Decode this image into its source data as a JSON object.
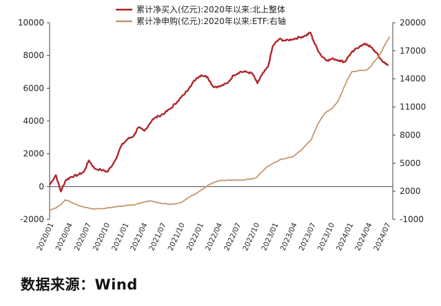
{
  "source_note": "数据来源：Wind",
  "colors": {
    "north": "#b0232a",
    "etf": "#c4956a",
    "axis": "#404040",
    "grid": "none"
  },
  "chart_data": {
    "type": "line",
    "title": "",
    "grid": false,
    "legend_position": "top-center",
    "x_tick_labels": [
      "2020/01",
      "2020/04",
      "2020/07",
      "2020/10",
      "2021/01",
      "2021/04",
      "2021/07",
      "2021/10",
      "2022/01",
      "2022/04",
      "2022/07",
      "2022/10",
      "2023/01",
      "2023/04",
      "2023/07",
      "2023/10",
      "2024/01",
      "2024/04",
      "2024/07"
    ],
    "y_left": {
      "range": [
        -2000,
        10000
      ],
      "ticks": [
        "10000",
        "8000",
        "6000",
        "4000",
        "2000",
        "0",
        "-2000"
      ]
    },
    "y_right": {
      "range": [
        -1000,
        20000
      ],
      "ticks": [
        "20000",
        "17000",
        "14000",
        "11000",
        "8000",
        "5000",
        "2000",
        "-1000"
      ]
    },
    "series": [
      {
        "name": "累计净买入(亿元):2020年以来:北上整体",
        "axis": "left",
        "color": "#b0232a",
        "points": [
          [
            0,
            100
          ],
          [
            1,
            700
          ],
          [
            1.8,
            -300
          ],
          [
            2.6,
            400
          ],
          [
            3.5,
            600
          ],
          [
            4.5,
            700
          ],
          [
            5.5,
            900
          ],
          [
            6.3,
            1600
          ],
          [
            7.2,
            1100
          ],
          [
            8.5,
            1000
          ],
          [
            9.3,
            900
          ],
          [
            10.5,
            1600
          ],
          [
            11.5,
            2500
          ],
          [
            12.5,
            2900
          ],
          [
            13.5,
            3100
          ],
          [
            14.2,
            3600
          ],
          [
            15.2,
            3400
          ],
          [
            16.5,
            4100
          ],
          [
            17.5,
            4300
          ],
          [
            18.5,
            4500
          ],
          [
            19.5,
            4800
          ],
          [
            20.5,
            5200
          ],
          [
            21.5,
            5600
          ],
          [
            22.5,
            6100
          ],
          [
            23.5,
            6600
          ],
          [
            24.3,
            6800
          ],
          [
            25.3,
            6700
          ],
          [
            26.2,
            6100
          ],
          [
            27.2,
            6100
          ],
          [
            28.5,
            6300
          ],
          [
            29.5,
            6800
          ],
          [
            30.5,
            7000
          ],
          [
            31.5,
            7000
          ],
          [
            32.5,
            6900
          ],
          [
            33.3,
            6300
          ],
          [
            34,
            6800
          ],
          [
            35,
            7300
          ],
          [
            35.8,
            8600
          ],
          [
            36.8,
            9000
          ],
          [
            37.8,
            8900
          ],
          [
            39,
            9000
          ],
          [
            40,
            9100
          ],
          [
            41,
            9200
          ],
          [
            41.8,
            9400
          ],
          [
            42.5,
            8700
          ],
          [
            43.5,
            8000
          ],
          [
            44.5,
            7700
          ],
          [
            45.5,
            7800
          ],
          [
            46.5,
            7700
          ],
          [
            47.3,
            7600
          ],
          [
            48,
            8000
          ],
          [
            48.8,
            8300
          ],
          [
            49.8,
            8600
          ],
          [
            50.8,
            8700
          ],
          [
            51.5,
            8500
          ],
          [
            52.3,
            8200
          ],
          [
            53,
            7800
          ],
          [
            53.8,
            7500
          ],
          [
            54.3,
            7400
          ]
        ]
      },
      {
        "name": "累计净申购(亿元):2020年以来:ETF:右轴",
        "axis": "right",
        "color": "#c4956a",
        "points": [
          [
            0,
            0
          ],
          [
            1,
            200
          ],
          [
            2,
            700
          ],
          [
            2.5,
            1100
          ],
          [
            3.5,
            800
          ],
          [
            5,
            400
          ],
          [
            7,
            100
          ],
          [
            9,
            200
          ],
          [
            11,
            400
          ],
          [
            13,
            500
          ],
          [
            14.5,
            700
          ],
          [
            16,
            1000
          ],
          [
            18,
            700
          ],
          [
            19.5,
            600
          ],
          [
            21,
            800
          ],
          [
            22.5,
            1400
          ],
          [
            24,
            2000
          ],
          [
            25.5,
            2700
          ],
          [
            27,
            3100
          ],
          [
            29,
            3200
          ],
          [
            31,
            3200
          ],
          [
            33,
            3400
          ],
          [
            35,
            4700
          ],
          [
            37,
            5400
          ],
          [
            39,
            5700
          ],
          [
            40.5,
            6500
          ],
          [
            42,
            7600
          ],
          [
            43,
            9200
          ],
          [
            44.2,
            10400
          ],
          [
            45.2,
            10800
          ],
          [
            46.2,
            11600
          ],
          [
            47,
            12800
          ],
          [
            47.8,
            14000
          ],
          [
            48.5,
            14800
          ],
          [
            50,
            14900
          ],
          [
            51,
            15000
          ],
          [
            52,
            15800
          ],
          [
            53,
            16700
          ],
          [
            53.8,
            17700
          ],
          [
            54.5,
            18500
          ]
        ]
      }
    ]
  }
}
